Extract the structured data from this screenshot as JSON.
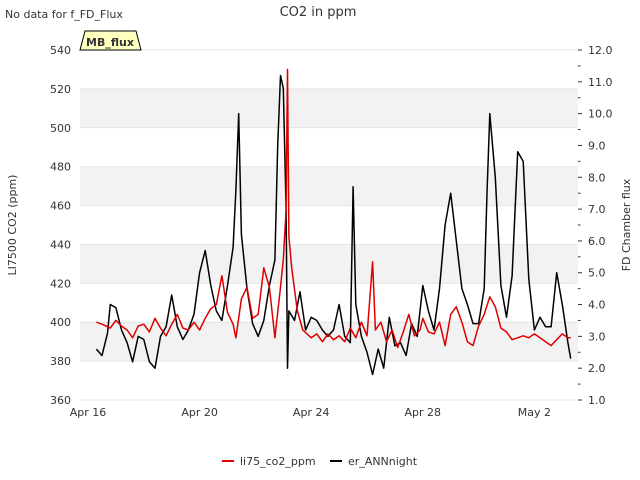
{
  "chart_data": {
    "type": "line",
    "title": "CO2 in ppm",
    "notice": "No data for f_FD_Flux",
    "badge": "MB_flux",
    "ylabel_left": "LI7500 CO2 (ppm)",
    "ylabel_right": "FD Chamber flux",
    "ylim_left": [
      360,
      540
    ],
    "ylim_right": [
      1.0,
      12.0
    ],
    "xlim": [
      0,
      18
    ],
    "left_ticks": [
      360,
      380,
      400,
      420,
      440,
      460,
      480,
      500,
      520,
      540
    ],
    "right_ticks": [
      "1.0",
      "2.0",
      "3.0",
      "4.0",
      "5.0",
      "6.0",
      "7.0",
      "8.0",
      "9.0",
      "10.0",
      "11.0",
      "12.0"
    ],
    "x_ticks": [
      {
        "label": "Apr 16",
        "value": 0
      },
      {
        "label": "Apr 20",
        "value": 4
      },
      {
        "label": "Apr 24",
        "value": 8
      },
      {
        "label": "Apr 28",
        "value": 12
      },
      {
        "label": "May 2",
        "value": 16
      }
    ],
    "x_unit": "days since Apr 16",
    "colors": {
      "li75": "#dd0000",
      "ann": "#000000",
      "band": "#f2f2f2",
      "grid": "#dddddd",
      "badge_bg": "#ffffc0",
      "badge_text": "#8b0000"
    },
    "series": [
      {
        "name": "li75_co2_ppm",
        "axis": "left",
        "points": [
          [
            0.3,
            400
          ],
          [
            0.5,
            399
          ],
          [
            0.8,
            397
          ],
          [
            1.0,
            401
          ],
          [
            1.2,
            398
          ],
          [
            1.4,
            396
          ],
          [
            1.6,
            392
          ],
          [
            1.8,
            398
          ],
          [
            2.0,
            399
          ],
          [
            2.2,
            395
          ],
          [
            2.4,
            402
          ],
          [
            2.6,
            397
          ],
          [
            2.8,
            393
          ],
          [
            3.0,
            399
          ],
          [
            3.2,
            404
          ],
          [
            3.4,
            397
          ],
          [
            3.6,
            396
          ],
          [
            3.8,
            400
          ],
          [
            4.0,
            396
          ],
          [
            4.2,
            402
          ],
          [
            4.4,
            407
          ],
          [
            4.6,
            409
          ],
          [
            4.8,
            424
          ],
          [
            5.0,
            405
          ],
          [
            5.2,
            399
          ],
          [
            5.3,
            392
          ],
          [
            5.5,
            412
          ],
          [
            5.7,
            418
          ],
          [
            5.9,
            402
          ],
          [
            6.1,
            404
          ],
          [
            6.3,
            428
          ],
          [
            6.5,
            418
          ],
          [
            6.7,
            392
          ],
          [
            6.9,
            418
          ],
          [
            7.0,
            432
          ],
          [
            7.1,
            458
          ],
          [
            7.15,
            530
          ],
          [
            7.2,
            444
          ],
          [
            7.3,
            428
          ],
          [
            7.5,
            406
          ],
          [
            7.7,
            396
          ],
          [
            8.0,
            392
          ],
          [
            8.2,
            394
          ],
          [
            8.4,
            390
          ],
          [
            8.6,
            394
          ],
          [
            8.8,
            391
          ],
          [
            9.0,
            393
          ],
          [
            9.2,
            390
          ],
          [
            9.4,
            397
          ],
          [
            9.6,
            392
          ],
          [
            9.8,
            400
          ],
          [
            10.0,
            393
          ],
          [
            10.2,
            431
          ],
          [
            10.3,
            396
          ],
          [
            10.5,
            400
          ],
          [
            10.7,
            390
          ],
          [
            10.9,
            396
          ],
          [
            11.1,
            387
          ],
          [
            11.3,
            395
          ],
          [
            11.5,
            404
          ],
          [
            11.7,
            393
          ],
          [
            11.9,
            396
          ],
          [
            12.0,
            402
          ],
          [
            12.2,
            395
          ],
          [
            12.4,
            394
          ],
          [
            12.6,
            400
          ],
          [
            12.8,
            388
          ],
          [
            13.0,
            404
          ],
          [
            13.2,
            408
          ],
          [
            13.4,
            400
          ],
          [
            13.6,
            390
          ],
          [
            13.8,
            388
          ],
          [
            14.0,
            398
          ],
          [
            14.2,
            404
          ],
          [
            14.4,
            413
          ],
          [
            14.6,
            408
          ],
          [
            14.8,
            397
          ],
          [
            15.0,
            395
          ],
          [
            15.2,
            391
          ],
          [
            15.4,
            392
          ],
          [
            15.6,
            393
          ],
          [
            15.8,
            392
          ],
          [
            16.0,
            394
          ],
          [
            16.2,
            392
          ],
          [
            16.4,
            390
          ],
          [
            16.6,
            388
          ],
          [
            16.8,
            391
          ],
          [
            17.0,
            394
          ],
          [
            17.2,
            392
          ],
          [
            17.3,
            392
          ]
        ]
      },
      {
        "name": "er_ANNnight",
        "axis": "right",
        "points": [
          [
            0.3,
            2.6
          ],
          [
            0.5,
            2.4
          ],
          [
            0.7,
            3.1
          ],
          [
            0.8,
            4.0
          ],
          [
            1.0,
            3.9
          ],
          [
            1.2,
            3.2
          ],
          [
            1.4,
            2.8
          ],
          [
            1.6,
            2.2
          ],
          [
            1.8,
            3.0
          ],
          [
            2.0,
            2.9
          ],
          [
            2.2,
            2.2
          ],
          [
            2.4,
            2.0
          ],
          [
            2.6,
            3.0
          ],
          [
            2.8,
            3.3
          ],
          [
            3.0,
            4.3
          ],
          [
            3.2,
            3.3
          ],
          [
            3.4,
            2.9
          ],
          [
            3.6,
            3.2
          ],
          [
            3.8,
            3.7
          ],
          [
            4.0,
            5.0
          ],
          [
            4.2,
            5.7
          ],
          [
            4.4,
            4.6
          ],
          [
            4.6,
            3.8
          ],
          [
            4.8,
            3.5
          ],
          [
            5.0,
            4.6
          ],
          [
            5.2,
            5.8
          ],
          [
            5.3,
            7.6
          ],
          [
            5.4,
            10.0
          ],
          [
            5.5,
            6.2
          ],
          [
            5.7,
            4.5
          ],
          [
            5.9,
            3.4
          ],
          [
            6.1,
            3.0
          ],
          [
            6.3,
            3.5
          ],
          [
            6.5,
            4.6
          ],
          [
            6.7,
            5.4
          ],
          [
            6.8,
            9.0
          ],
          [
            6.9,
            11.2
          ],
          [
            7.0,
            10.8
          ],
          [
            7.1,
            7.0
          ],
          [
            7.15,
            2.0
          ],
          [
            7.2,
            3.8
          ],
          [
            7.4,
            3.5
          ],
          [
            7.6,
            4.4
          ],
          [
            7.8,
            3.2
          ],
          [
            8.0,
            3.6
          ],
          [
            8.2,
            3.5
          ],
          [
            8.4,
            3.2
          ],
          [
            8.6,
            3.0
          ],
          [
            8.8,
            3.2
          ],
          [
            9.0,
            4.0
          ],
          [
            9.2,
            3.0
          ],
          [
            9.4,
            2.8
          ],
          [
            9.5,
            7.7
          ],
          [
            9.6,
            4.0
          ],
          [
            9.8,
            3.0
          ],
          [
            10.0,
            2.5
          ],
          [
            10.2,
            1.8
          ],
          [
            10.4,
            2.6
          ],
          [
            10.6,
            2.0
          ],
          [
            10.8,
            3.6
          ],
          [
            11.0,
            2.7
          ],
          [
            11.2,
            2.8
          ],
          [
            11.4,
            2.4
          ],
          [
            11.6,
            3.4
          ],
          [
            11.8,
            3.0
          ],
          [
            12.0,
            4.6
          ],
          [
            12.2,
            3.8
          ],
          [
            12.4,
            3.2
          ],
          [
            12.6,
            4.5
          ],
          [
            12.8,
            6.5
          ],
          [
            13.0,
            7.5
          ],
          [
            13.2,
            6.0
          ],
          [
            13.4,
            4.5
          ],
          [
            13.6,
            4.0
          ],
          [
            13.8,
            3.4
          ],
          [
            14.0,
            3.4
          ],
          [
            14.2,
            4.5
          ],
          [
            14.3,
            7.5
          ],
          [
            14.4,
            10.0
          ],
          [
            14.6,
            8.0
          ],
          [
            14.8,
            4.6
          ],
          [
            15.0,
            3.6
          ],
          [
            15.2,
            4.9
          ],
          [
            15.4,
            8.8
          ],
          [
            15.6,
            8.5
          ],
          [
            15.8,
            4.8
          ],
          [
            16.0,
            3.2
          ],
          [
            16.2,
            3.6
          ],
          [
            16.4,
            3.3
          ],
          [
            16.6,
            3.3
          ],
          [
            16.8,
            5.0
          ],
          [
            17.0,
            4.0
          ],
          [
            17.2,
            2.8
          ],
          [
            17.3,
            2.3
          ]
        ]
      }
    ],
    "legend": [
      {
        "label": "li75_co2_ppm",
        "color": "#dd0000"
      },
      {
        "label": "er_ANNnight",
        "color": "#000000"
      }
    ]
  }
}
